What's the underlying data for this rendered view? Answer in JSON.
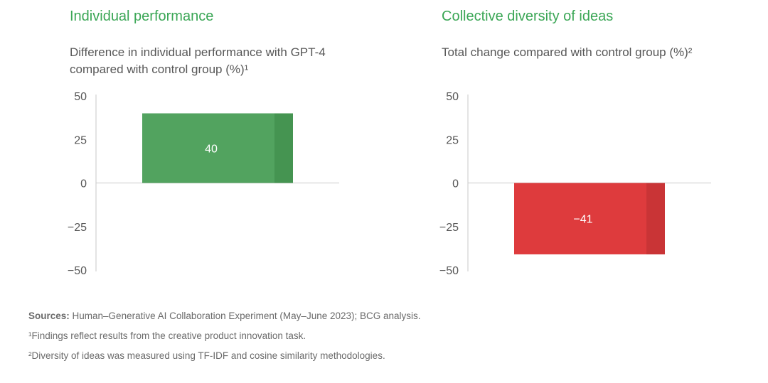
{
  "colors": {
    "accent_title": "#3aa655",
    "positive_bar": "#52a35f",
    "positive_bar_edge": "#459451",
    "negative_bar": "#de3b3d",
    "negative_bar_edge": "#c93436",
    "axis": "#c8c8c8"
  },
  "panels": [
    {
      "title": "Individual performance",
      "subtitle_line1": "Difference in individual performance with GPT-4",
      "subtitle_line2": "compared with control group (%)¹"
    },
    {
      "title": "Collective diversity of ideas",
      "subtitle_line1": "Total change compared with control group (%)²",
      "subtitle_line2": ""
    }
  ],
  "chart_data": [
    {
      "type": "bar",
      "title": "Individual performance",
      "ylabel": "Difference in individual performance with GPT-4 compared with control group (%)¹",
      "xlabel": "",
      "categories": [
        ""
      ],
      "values": [
        40
      ],
      "data_labels": [
        "40"
      ],
      "ylim": [
        -50,
        50
      ],
      "yticks": [
        50,
        25,
        0,
        -25,
        -50
      ],
      "ytick_labels": [
        "50",
        "25",
        "0",
        "−25",
        "−50"
      ],
      "grid": false
    },
    {
      "type": "bar",
      "title": "Collective diversity of ideas",
      "ylabel": "Total change compared with control group (%)²",
      "xlabel": "",
      "categories": [
        ""
      ],
      "values": [
        -41
      ],
      "data_labels": [
        "−41"
      ],
      "ylim": [
        -50,
        50
      ],
      "yticks": [
        50,
        25,
        0,
        -25,
        -50
      ],
      "ytick_labels": [
        "50",
        "25",
        "0",
        "−25",
        "−50"
      ],
      "grid": false
    }
  ],
  "footer": {
    "sources_label": "Sources:",
    "sources_text": " Human–Generative AI Collaboration Experiment (May–June 2023); BCG analysis.",
    "note1": "¹Findings reflect results from the creative product innovation task.",
    "note2": "²Diversity of ideas was measured using TF-IDF and cosine similarity methodologies."
  }
}
